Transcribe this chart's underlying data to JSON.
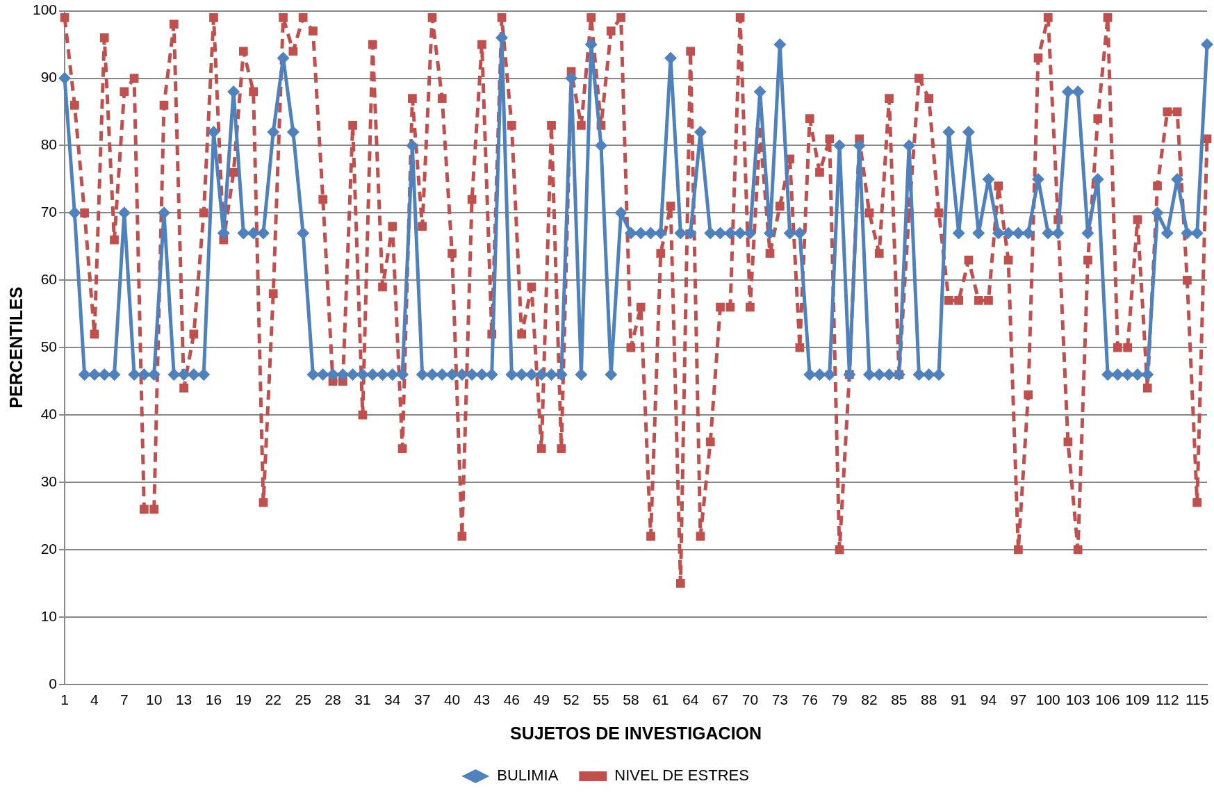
{
  "chart_data": {
    "type": "line",
    "xlabel": "SUJETOS DE INVESTIGACION",
    "ylabel": "PERCENTILES",
    "categories": [
      "1",
      null,
      null,
      "4",
      null,
      null,
      "7",
      null,
      null,
      "10",
      null,
      null,
      "13",
      null,
      null,
      "16",
      null,
      null,
      "19",
      null,
      null,
      "22",
      null,
      null,
      "25",
      null,
      null,
      "28",
      null,
      null,
      "31",
      null,
      null,
      "34",
      null,
      null,
      "37",
      null,
      null,
      "40",
      null,
      null,
      "43",
      null,
      null,
      "46",
      null,
      null,
      "49",
      null,
      null,
      "52",
      null,
      null,
      "55",
      null,
      null,
      "58",
      null,
      null,
      "61",
      null,
      null,
      "64",
      null,
      null,
      "67",
      null,
      null,
      "70",
      null,
      null,
      "73",
      null,
      null,
      "76",
      null,
      null,
      "79",
      null,
      null,
      "82",
      null,
      null,
      "85",
      null,
      null,
      "88",
      null,
      null,
      "91",
      null,
      null,
      "94",
      null,
      null,
      "97",
      null,
      null,
      "100",
      null,
      null,
      "103",
      null,
      null,
      "106",
      null,
      null,
      "109",
      null,
      null,
      "112",
      null,
      null,
      "115",
      null
    ],
    "series": [
      {
        "name": "BULIMIA",
        "color": "#4f81bd",
        "marker": "diamond",
        "line_style": "solid",
        "values": [
          90,
          70,
          46,
          46,
          46,
          46,
          70,
          46,
          46,
          46,
          70,
          46,
          46,
          46,
          46,
          82,
          67,
          88,
          67,
          67,
          67,
          82,
          93,
          82,
          67,
          46,
          46,
          46,
          46,
          46,
          46,
          46,
          46,
          46,
          46,
          80,
          46,
          46,
          46,
          46,
          46,
          46,
          46,
          46,
          96,
          46,
          46,
          46,
          46,
          46,
          46,
          90,
          46,
          95,
          80,
          46,
          70,
          67,
          67,
          67,
          67,
          93,
          67,
          67,
          82,
          67,
          67,
          67,
          67,
          67,
          88,
          67,
          95,
          67,
          67,
          46,
          46,
          46,
          80,
          46,
          80,
          46,
          46,
          46,
          46,
          80,
          46,
          46,
          46,
          82,
          67,
          82,
          67,
          75,
          67,
          67,
          67,
          67,
          75,
          67,
          67,
          88,
          88,
          67,
          75,
          46,
          46,
          46,
          46,
          46,
          70,
          67,
          75,
          67,
          67,
          95
        ]
      },
      {
        "name": "NIVEL DE ESTRES",
        "color": "#c0504d",
        "marker": "square",
        "line_style": "dashed",
        "values": [
          99,
          86,
          70,
          52,
          96,
          66,
          88,
          90,
          26,
          26,
          86,
          98,
          44,
          52,
          70,
          99,
          66,
          76,
          94,
          88,
          27,
          58,
          99,
          94,
          99,
          97,
          72,
          45,
          45,
          83,
          40,
          95,
          59,
          68,
          35,
          87,
          68,
          99,
          87,
          64,
          22,
          72,
          95,
          52,
          99,
          83,
          52,
          59,
          35,
          83,
          35,
          91,
          83,
          99,
          83,
          97,
          99,
          50,
          56,
          22,
          64,
          71,
          15,
          94,
          22,
          36,
          56,
          56,
          99,
          56,
          82,
          64,
          71,
          78,
          50,
          84,
          76,
          81,
          20,
          46,
          81,
          70,
          64,
          87,
          46,
          70,
          90,
          87,
          70,
          57,
          57,
          63,
          57,
          57,
          74,
          63,
          20,
          43,
          93,
          99,
          69,
          36,
          20,
          63,
          84,
          99,
          50,
          50,
          69,
          44,
          74,
          85,
          85,
          60,
          27,
          81
        ]
      }
    ],
    "ylim": [
      0,
      100
    ],
    "yticks": [
      0,
      10,
      20,
      30,
      40,
      50,
      60,
      70,
      80,
      90,
      100
    ],
    "grid": "y",
    "legend": "bottom"
  }
}
